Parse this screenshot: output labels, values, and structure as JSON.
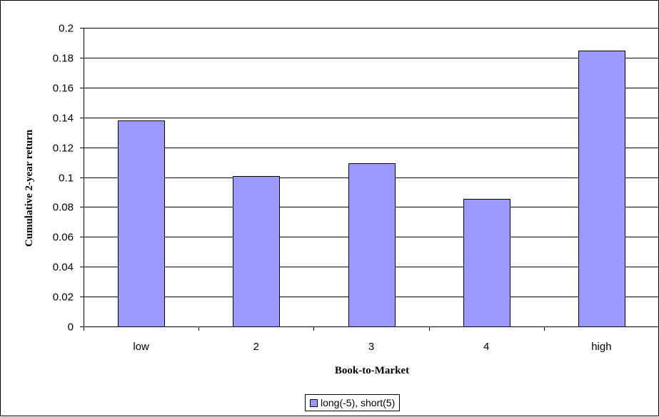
{
  "chart_data": {
    "type": "bar",
    "categories": [
      "low",
      "2",
      "3",
      "4",
      "high"
    ],
    "series": [
      {
        "name": "long(-5), short(5)",
        "values": [
          0.138,
          0.1005,
          0.1095,
          0.0855,
          0.1845
        ]
      }
    ],
    "xlabel": "Book-to-Market",
    "ylabel": "Cumulative 2-year return",
    "ylim": [
      0,
      0.2
    ],
    "yticks": [
      "0",
      "0.02",
      "0.04",
      "0.06",
      "0.08",
      "0.1",
      "0.12",
      "0.14",
      "0.16",
      "0.18",
      "0.2"
    ],
    "grid": true,
    "legend": "bottom-center",
    "colors": {
      "bar_fill": "#9999ff",
      "bar_stroke": "#000000",
      "grid": "#000000",
      "plot_background": "#ffffff"
    }
  }
}
